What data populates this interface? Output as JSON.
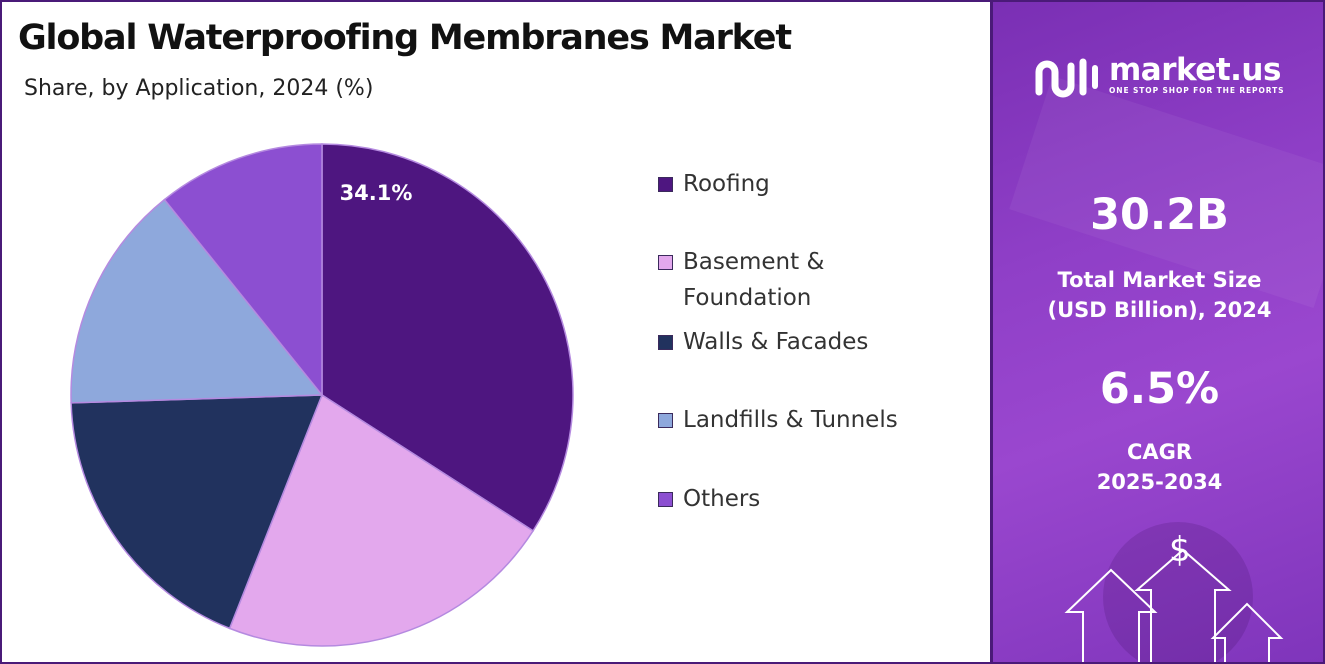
{
  "title": "Global Waterproofing Membranes Market",
  "subtitle": "Share, by Application, 2024 (%)",
  "chart_data": {
    "type": "pie",
    "categories": [
      "Roofing",
      "Basement & Foundation",
      "Walls & Facades",
      "Landfills & Tunnels",
      "Others"
    ],
    "values": [
      34.1,
      21.9,
      18.5,
      14.7,
      10.8
    ],
    "data_labels": [
      "34.1%",
      "",
      "",
      "",
      ""
    ],
    "colors": [
      "#4e1680",
      "#e3a8ed",
      "#21325e",
      "#8ea8dc",
      "#8c4fd1"
    ],
    "legend": "right"
  },
  "brand": {
    "name": "market.us",
    "tagline": "ONE STOP SHOP FOR THE REPORTS"
  },
  "stats": {
    "market_size_value": "30.2B",
    "market_size_label_line1": "Total Market Size",
    "market_size_label_line2": "(USD Billion), 2024",
    "cagr_value": "6.5%",
    "cagr_label_line1": "CAGR",
    "cagr_label_line2": "2025-2034"
  },
  "icons": {
    "dollar_symbol": "$"
  }
}
